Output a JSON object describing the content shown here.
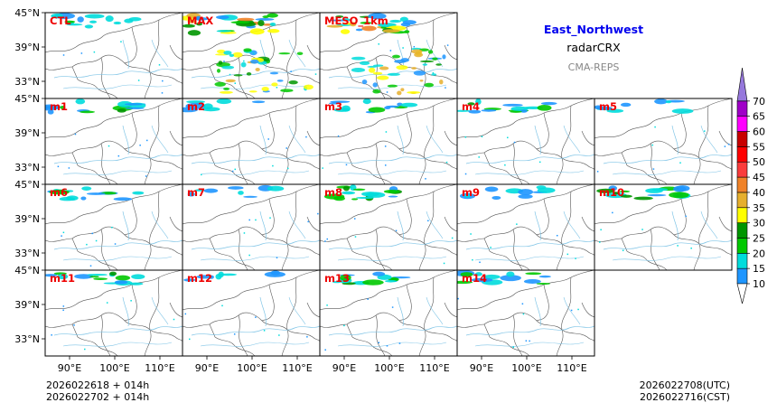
{
  "header": {
    "region": "East_Northwest",
    "variable": "radarCRX",
    "system": "CMA-REPS"
  },
  "colors": {
    "region": "#0000ee",
    "panel_label": "#ee0000",
    "border": "#555555",
    "river": "#7fc4e6"
  },
  "panels": [
    {
      "label": "CTL",
      "intensity": 0.3
    },
    {
      "label": "MAX",
      "intensity": 0.95
    },
    {
      "label": "MESO_1km",
      "intensity": 0.9
    },
    {
      "label": "m1",
      "intensity": 0.35
    },
    {
      "label": "m2",
      "intensity": 0.1
    },
    {
      "label": "m3",
      "intensity": 0.25
    },
    {
      "label": "m4",
      "intensity": 0.35
    },
    {
      "label": "m5",
      "intensity": 0.15
    },
    {
      "label": "m6",
      "intensity": 0.35
    },
    {
      "label": "m7",
      "intensity": 0.1
    },
    {
      "label": "m8",
      "intensity": 0.45
    },
    {
      "label": "m9",
      "intensity": 0.2
    },
    {
      "label": "m10",
      "intensity": 0.45
    },
    {
      "label": "m11",
      "intensity": 0.4
    },
    {
      "label": "m12",
      "intensity": 0.1
    },
    {
      "label": "m13",
      "intensity": 0.35
    },
    {
      "label": "m14",
      "intensity": 0.3
    }
  ],
  "axes": {
    "lat_ticks": [
      "45°N",
      "39°N",
      "33°N"
    ],
    "lon_ticks": [
      "90°E",
      "100°E",
      "110°E"
    ]
  },
  "colorbar": {
    "levels": [
      "10",
      "15",
      "20",
      "25",
      "30",
      "35",
      "40",
      "45",
      "50",
      "55",
      "60",
      "65",
      "70"
    ],
    "colors": [
      "#1e96ff",
      "#00dcdc",
      "#00c800",
      "#009600",
      "#ffff00",
      "#e6af2d",
      "#f08228",
      "#fa3c3c",
      "#ff0000",
      "#c80000",
      "#ff00ff",
      "#a000c8",
      "#9678dc"
    ]
  },
  "footer": {
    "init_utc": "2026022618  +  014h",
    "init_cst": "2026022702  +  014h",
    "valid_utc": "2026022708(UTC)",
    "valid_cst": "2026022716(CST)"
  }
}
